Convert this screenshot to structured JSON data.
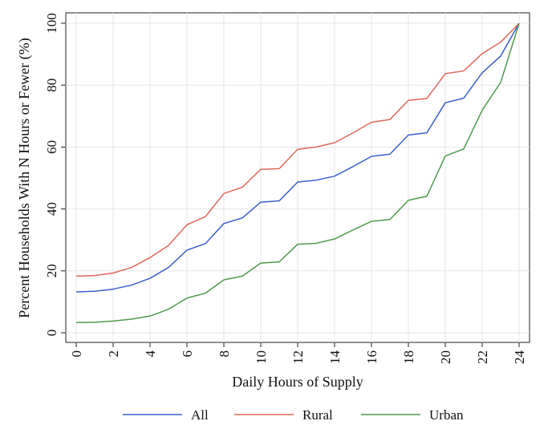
{
  "chart_data": {
    "type": "line",
    "title": "",
    "xlabel": "Daily Hours of Supply",
    "ylabel": "Percent Households With N Hours or Fewer (%)",
    "xlim": [
      0,
      24
    ],
    "ylim": [
      0,
      100
    ],
    "xticks": [
      0,
      2,
      4,
      6,
      8,
      10,
      12,
      14,
      16,
      18,
      20,
      22,
      24
    ],
    "yticks": [
      0,
      20,
      40,
      60,
      80,
      100
    ],
    "grid": true,
    "legend_position": "bottom",
    "x": [
      0,
      1,
      2,
      3,
      4,
      5,
      6,
      7,
      8,
      9,
      10,
      11,
      12,
      13,
      14,
      15,
      16,
      17,
      18,
      19,
      20,
      21,
      22,
      23,
      24
    ],
    "series": [
      {
        "name": "All",
        "color": "#3a5fcd",
        "values": [
          13.2,
          13.4,
          14.1,
          15.4,
          17.6,
          21.1,
          26.7,
          28.8,
          35.3,
          37.1,
          42.2,
          42.6,
          48.7,
          49.3,
          50.6,
          53.7,
          57.0,
          57.7,
          63.9,
          64.6,
          74.3,
          75.8,
          84.0,
          89.4,
          100
        ]
      },
      {
        "name": "Rural",
        "color": "#e0675a",
        "values": [
          18.3,
          18.5,
          19.3,
          21.1,
          24.3,
          28.2,
          34.9,
          37.5,
          45.0,
          47.0,
          52.8,
          53.0,
          59.3,
          60.0,
          61.4,
          64.6,
          68.0,
          68.9,
          75.1,
          75.7,
          83.7,
          84.6,
          90.2,
          93.9,
          100
        ]
      },
      {
        "name": "Urban",
        "color": "#4e9a4b",
        "values": [
          3.3,
          3.4,
          3.8,
          4.4,
          5.4,
          7.6,
          11.2,
          12.8,
          17.1,
          18.3,
          22.5,
          22.9,
          28.6,
          28.9,
          30.3,
          33.2,
          36.0,
          36.6,
          42.8,
          44.1,
          57.1,
          59.4,
          71.9,
          80.9,
          100
        ]
      }
    ]
  }
}
